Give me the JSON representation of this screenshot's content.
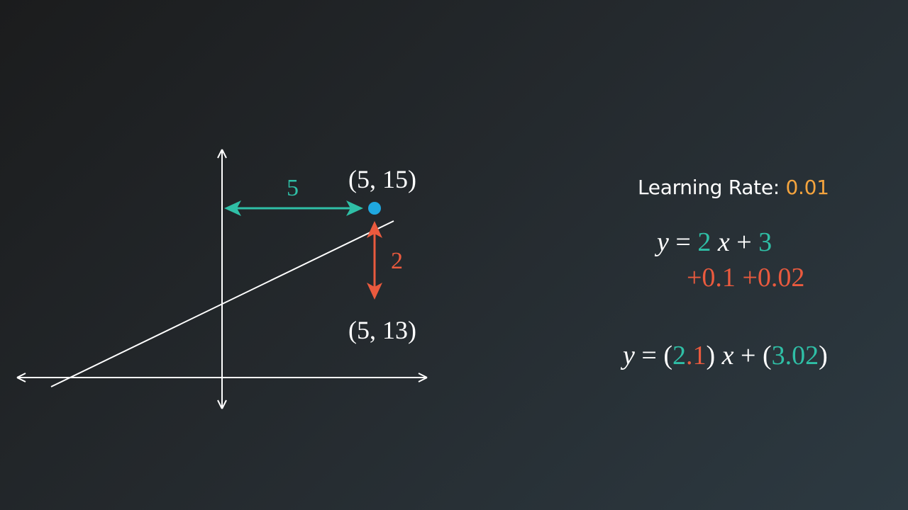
{
  "point_top_label": "(5, 15)",
  "point_bottom_label": "(5, 13)",
  "horizontal_distance_label": "5",
  "vertical_distance_label": "2",
  "learning_rate": {
    "label": "Learning Rate:",
    "value": "0.01"
  },
  "equation_original": {
    "lhs": "y",
    "equals": "=",
    "slope": "2",
    "x": "x",
    "plus": "+",
    "intercept": "3"
  },
  "increments": {
    "slope_increment": "+0.1",
    "intercept_increment": "+0.02"
  },
  "equation_updated": {
    "lhs": "y",
    "equals": "=",
    "open_paren_1": "(",
    "slope_int": "2",
    "slope_frac": ".1",
    "close_paren_1": ")",
    "x": "x",
    "plus": "+",
    "open_paren_2": "(",
    "intercept": "3.02",
    "close_paren_2": ")"
  },
  "colors": {
    "teal": "#2fbfa6",
    "red": "#ea5a3e",
    "orange": "#f4a43e",
    "point_blue": "#1fa8e0",
    "white": "#ffffff"
  }
}
